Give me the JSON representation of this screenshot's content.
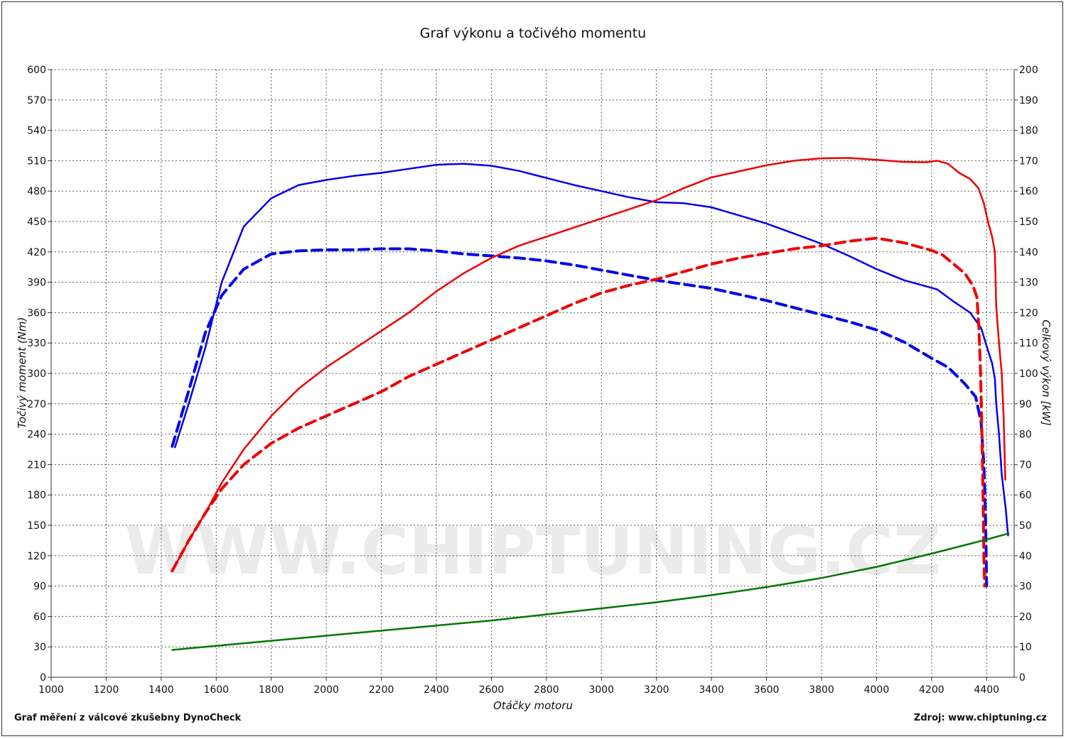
{
  "chart_data": {
    "type": "line",
    "title": "Graf výkonu a točivého momentu",
    "xlabel": "Otáčky motoru",
    "ylabel_left": "Točivý moment (Nm)",
    "ylabel_right": "Celkový výkon [kW]",
    "xlim": [
      1000,
      4500
    ],
    "ylim_left": [
      0,
      600
    ],
    "ylim_right": [
      0,
      200
    ],
    "x_ticks": [
      1000,
      1200,
      1400,
      1600,
      1800,
      2000,
      2200,
      2400,
      2600,
      2800,
      3000,
      3200,
      3400,
      3600,
      3800,
      4000,
      4200,
      4400
    ],
    "y_ticks_left": [
      0,
      30,
      60,
      90,
      120,
      150,
      180,
      210,
      240,
      270,
      300,
      330,
      360,
      390,
      420,
      450,
      480,
      510,
      540,
      570,
      600
    ],
    "y_ticks_right": [
      0,
      10,
      20,
      30,
      40,
      50,
      60,
      70,
      80,
      90,
      100,
      110,
      120,
      130,
      140,
      150,
      160,
      170,
      180,
      190,
      200
    ],
    "grid": true,
    "watermark": "WWW.CHIPTUNING.CZ",
    "series": [
      {
        "axis": "left",
        "color": "#0000ee",
        "style": "solid",
        "points": [
          [
            1450,
            227
          ],
          [
            1500,
            270
          ],
          [
            1560,
            325
          ],
          [
            1620,
            390
          ],
          [
            1700,
            445
          ],
          [
            1800,
            473
          ],
          [
            1900,
            486
          ],
          [
            2000,
            491
          ],
          [
            2100,
            495
          ],
          [
            2200,
            498
          ],
          [
            2300,
            502
          ],
          [
            2400,
            506
          ],
          [
            2500,
            507
          ],
          [
            2600,
            505
          ],
          [
            2700,
            500
          ],
          [
            2800,
            493
          ],
          [
            2900,
            486
          ],
          [
            3000,
            480
          ],
          [
            3100,
            474
          ],
          [
            3200,
            469
          ],
          [
            3300,
            468
          ],
          [
            3400,
            464
          ],
          [
            3500,
            456
          ],
          [
            3600,
            448
          ],
          [
            3700,
            438
          ],
          [
            3800,
            428
          ],
          [
            3900,
            416
          ],
          [
            4000,
            403
          ],
          [
            4100,
            392
          ],
          [
            4180,
            386
          ],
          [
            4220,
            383
          ],
          [
            4280,
            371
          ],
          [
            4340,
            360
          ],
          [
            4380,
            345
          ],
          [
            4400,
            327
          ],
          [
            4420,
            310
          ],
          [
            4430,
            295
          ],
          [
            4435,
            270
          ],
          [
            4445,
            240
          ],
          [
            4455,
            200
          ],
          [
            4470,
            165
          ],
          [
            4478,
            140
          ]
        ]
      },
      {
        "axis": "left",
        "color": "#0000ee",
        "style": "dashed",
        "points": [
          [
            1440,
            228
          ],
          [
            1500,
            283
          ],
          [
            1560,
            340
          ],
          [
            1620,
            377
          ],
          [
            1700,
            403
          ],
          [
            1800,
            418
          ],
          [
            1900,
            421
          ],
          [
            2000,
            422
          ],
          [
            2100,
            422
          ],
          [
            2200,
            423
          ],
          [
            2300,
            423
          ],
          [
            2400,
            421
          ],
          [
            2500,
            418
          ],
          [
            2600,
            416
          ],
          [
            2700,
            414
          ],
          [
            2800,
            411
          ],
          [
            2900,
            407
          ],
          [
            3000,
            402
          ],
          [
            3100,
            397
          ],
          [
            3200,
            392
          ],
          [
            3300,
            388
          ],
          [
            3400,
            384
          ],
          [
            3500,
            378
          ],
          [
            3600,
            372
          ],
          [
            3700,
            365
          ],
          [
            3800,
            358
          ],
          [
            3900,
            351
          ],
          [
            4000,
            343
          ],
          [
            4100,
            331
          ],
          [
            4200,
            315
          ],
          [
            4260,
            306
          ],
          [
            4320,
            290
          ],
          [
            4360,
            277
          ],
          [
            4380,
            252
          ],
          [
            4390,
            210
          ],
          [
            4395,
            170
          ],
          [
            4398,
            130
          ],
          [
            4400,
            90
          ]
        ]
      },
      {
        "axis": "right",
        "color": "#ee0000",
        "style": "solid",
        "points": [
          [
            1440,
            35
          ],
          [
            1500,
            45
          ],
          [
            1560,
            54
          ],
          [
            1620,
            64
          ],
          [
            1700,
            75
          ],
          [
            1800,
            86
          ],
          [
            1900,
            95
          ],
          [
            2000,
            102
          ],
          [
            2100,
            108
          ],
          [
            2200,
            114
          ],
          [
            2300,
            120
          ],
          [
            2400,
            127
          ],
          [
            2500,
            133
          ],
          [
            2600,
            138
          ],
          [
            2700,
            142
          ],
          [
            2800,
            145
          ],
          [
            2900,
            148
          ],
          [
            3000,
            151
          ],
          [
            3100,
            154
          ],
          [
            3200,
            157
          ],
          [
            3300,
            161
          ],
          [
            3400,
            164.5
          ],
          [
            3500,
            166.5
          ],
          [
            3600,
            168.5
          ],
          [
            3700,
            170
          ],
          [
            3800,
            170.8
          ],
          [
            3900,
            170.9
          ],
          [
            4000,
            170.3
          ],
          [
            4100,
            169.6
          ],
          [
            4180,
            169.5
          ],
          [
            4220,
            170
          ],
          [
            4260,
            169
          ],
          [
            4300,
            166
          ],
          [
            4340,
            164
          ],
          [
            4370,
            161
          ],
          [
            4390,
            156
          ],
          [
            4405,
            150
          ],
          [
            4420,
            145
          ],
          [
            4430,
            140
          ],
          [
            4435,
            122
          ],
          [
            4445,
            110
          ],
          [
            4455,
            100
          ],
          [
            4462,
            85
          ],
          [
            4468,
            65
          ]
        ]
      },
      {
        "axis": "right",
        "color": "#ee0000",
        "style": "dashed",
        "points": [
          [
            1440,
            35
          ],
          [
            1500,
            45
          ],
          [
            1560,
            54
          ],
          [
            1620,
            62
          ],
          [
            1700,
            70
          ],
          [
            1800,
            77
          ],
          [
            1900,
            82
          ],
          [
            2000,
            86
          ],
          [
            2100,
            90
          ],
          [
            2200,
            94
          ],
          [
            2300,
            99
          ],
          [
            2400,
            103
          ],
          [
            2500,
            107
          ],
          [
            2600,
            111
          ],
          [
            2700,
            115
          ],
          [
            2800,
            119
          ],
          [
            2900,
            123
          ],
          [
            3000,
            126.5
          ],
          [
            3100,
            129
          ],
          [
            3200,
            131
          ],
          [
            3300,
            133.5
          ],
          [
            3400,
            136
          ],
          [
            3500,
            138
          ],
          [
            3600,
            139.5
          ],
          [
            3700,
            141
          ],
          [
            3800,
            142
          ],
          [
            3900,
            143.5
          ],
          [
            4000,
            144.5
          ],
          [
            4100,
            143
          ],
          [
            4200,
            140.5
          ],
          [
            4240,
            139
          ],
          [
            4280,
            136
          ],
          [
            4320,
            133
          ],
          [
            4350,
            129
          ],
          [
            4365,
            125
          ],
          [
            4372,
            115
          ],
          [
            4378,
            100
          ],
          [
            4382,
            85
          ],
          [
            4385,
            70
          ],
          [
            4388,
            55
          ],
          [
            4390,
            40
          ],
          [
            4393,
            30
          ]
        ]
      },
      {
        "axis": "left",
        "color": "#007700",
        "style": "solid",
        "points": [
          [
            1440,
            27
          ],
          [
            1600,
            31
          ],
          [
            1800,
            36
          ],
          [
            2000,
            41
          ],
          [
            2200,
            46
          ],
          [
            2400,
            51
          ],
          [
            2600,
            56
          ],
          [
            2800,
            62
          ],
          [
            3000,
            68
          ],
          [
            3200,
            74
          ],
          [
            3400,
            81
          ],
          [
            3600,
            89
          ],
          [
            3800,
            98
          ],
          [
            4000,
            109
          ],
          [
            4200,
            122
          ],
          [
            4400,
            136
          ],
          [
            4480,
            142
          ]
        ]
      }
    ]
  },
  "footer": {
    "left": "Graf měření z válcové zkušebny DynoCheck",
    "right": "Zdroj: www.chiptuning.cz"
  }
}
